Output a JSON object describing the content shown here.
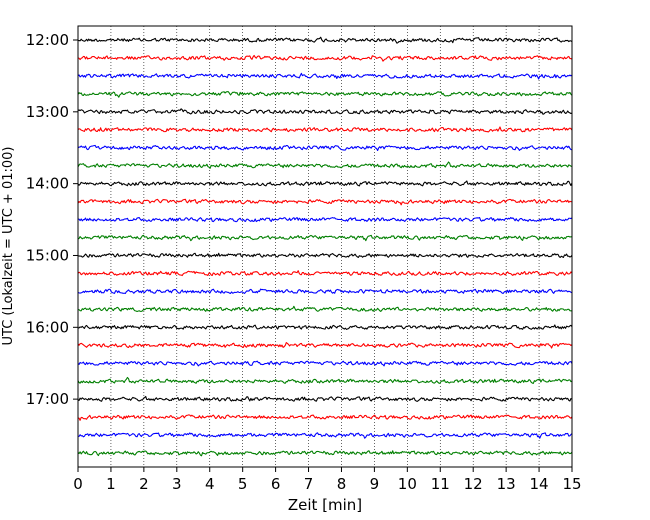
{
  "chart_data": {
    "type": "line",
    "title": "",
    "xlabel": "Zeit  [min]",
    "ylabel": "UTC (Lokalzeit = UTC + 01:00)",
    "xlim": [
      0,
      15
    ],
    "x_ticks": [
      "0",
      "1",
      "2",
      "3",
      "4",
      "5",
      "6",
      "7",
      "8",
      "9",
      "10",
      "11",
      "12",
      "13",
      "14",
      "15"
    ],
    "y_ticks": [
      "12:00",
      "13:00",
      "14:00",
      "15:00",
      "16:00",
      "17:00"
    ],
    "trace_interval_minutes": 15,
    "start_time": "12:00",
    "end_time": "17:45",
    "grid": "vertical dotted",
    "legend": "none",
    "colors": [
      "#000000",
      "#ff0000",
      "#0000ff",
      "#007f00"
    ],
    "traces": [
      {
        "start": "12:00",
        "color": "#000000"
      },
      {
        "start": "12:15",
        "color": "#ff0000"
      },
      {
        "start": "12:30",
        "color": "#0000ff"
      },
      {
        "start": "12:45",
        "color": "#007f00"
      },
      {
        "start": "13:00",
        "color": "#000000"
      },
      {
        "start": "13:15",
        "color": "#ff0000"
      },
      {
        "start": "13:30",
        "color": "#0000ff"
      },
      {
        "start": "13:45",
        "color": "#007f00"
      },
      {
        "start": "14:00",
        "color": "#000000"
      },
      {
        "start": "14:15",
        "color": "#ff0000"
      },
      {
        "start": "14:30",
        "color": "#0000ff"
      },
      {
        "start": "14:45",
        "color": "#007f00"
      },
      {
        "start": "15:00",
        "color": "#000000"
      },
      {
        "start": "15:15",
        "color": "#ff0000"
      },
      {
        "start": "15:30",
        "color": "#0000ff"
      },
      {
        "start": "15:45",
        "color": "#007f00"
      },
      {
        "start": "16:00",
        "color": "#000000"
      },
      {
        "start": "16:15",
        "color": "#ff0000"
      },
      {
        "start": "16:30",
        "color": "#0000ff"
      },
      {
        "start": "16:45",
        "color": "#007f00"
      },
      {
        "start": "17:00",
        "color": "#000000"
      },
      {
        "start": "17:15",
        "color": "#ff0000"
      },
      {
        "start": "17:30",
        "color": "#0000ff"
      },
      {
        "start": "17:45",
        "color": "#007f00"
      }
    ]
  }
}
